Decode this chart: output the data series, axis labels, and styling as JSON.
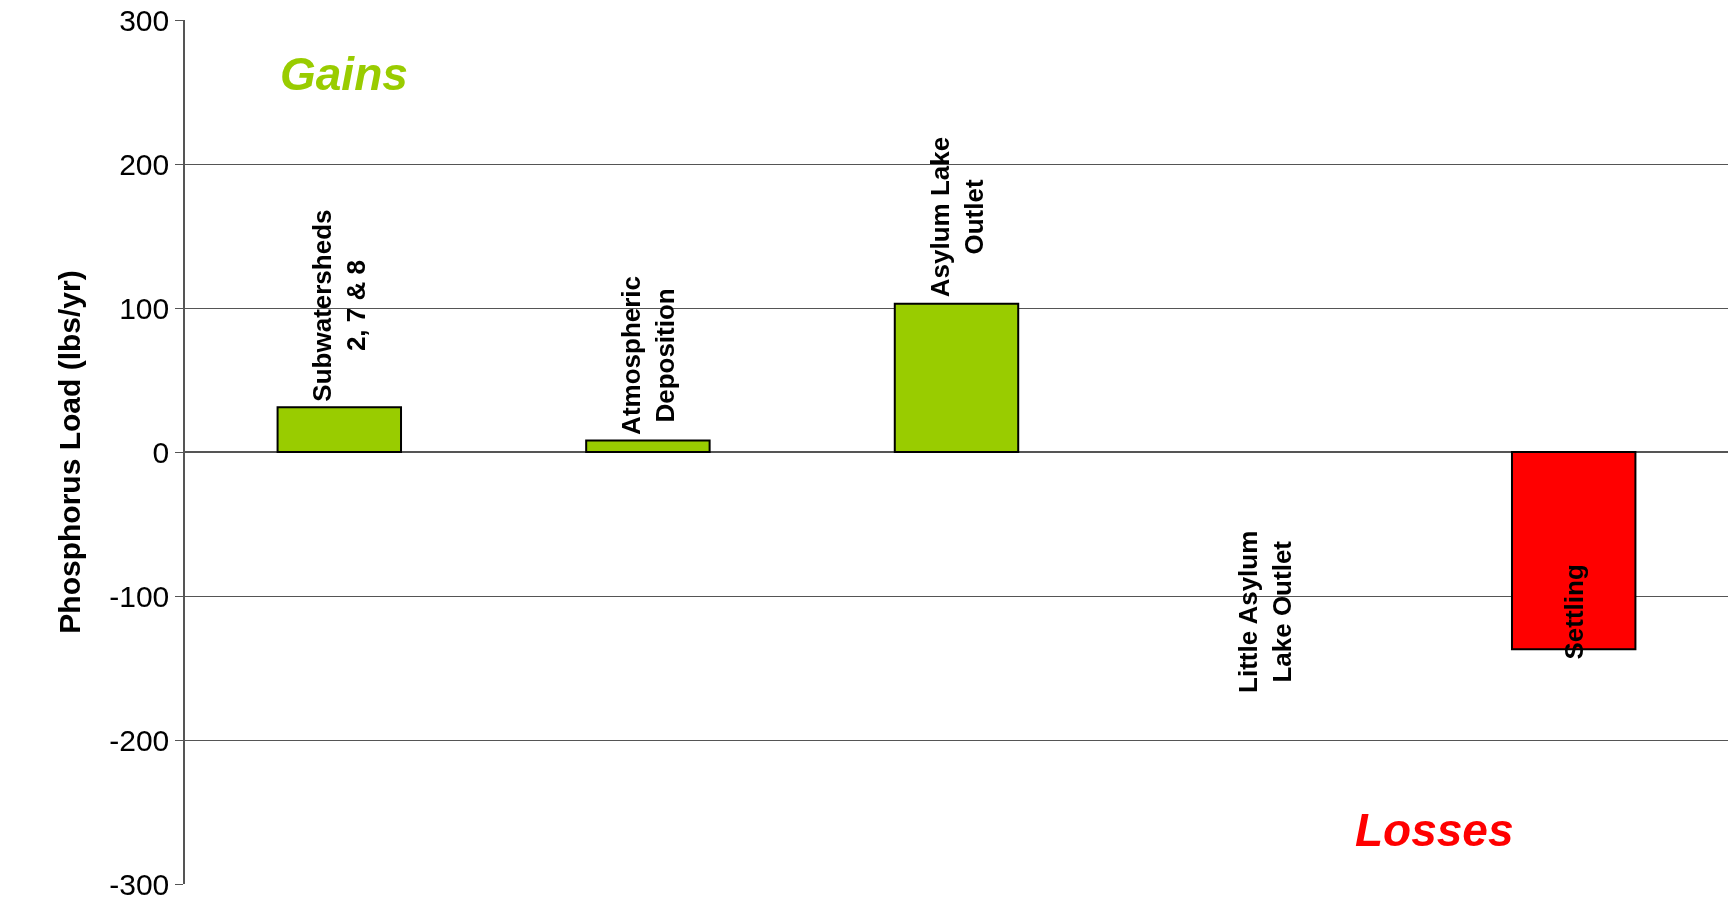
{
  "chart_data": {
    "type": "bar",
    "ylabel": "Phosphorus Load (lbs/yr)",
    "categories": [
      "Subwatersheds\n2, 7 & 8",
      "Atmospheric\nDeposition",
      "Asylum Lake\nOutlet",
      "Little Asylum\nLake Outlet",
      "Settling"
    ],
    "values": [
      31,
      8,
      103,
      null,
      -137
    ],
    "colors": [
      "#99cc00",
      "#99cc00",
      "#99cc00",
      null,
      "#ff0000"
    ],
    "ylim": [
      -300,
      300
    ],
    "yticks": [
      -300,
      -200,
      -100,
      0,
      100,
      200,
      300
    ],
    "grid": "y",
    "legend": false,
    "tick_labels": "y",
    "annotations": [
      "Gains",
      "Losses"
    ]
  }
}
